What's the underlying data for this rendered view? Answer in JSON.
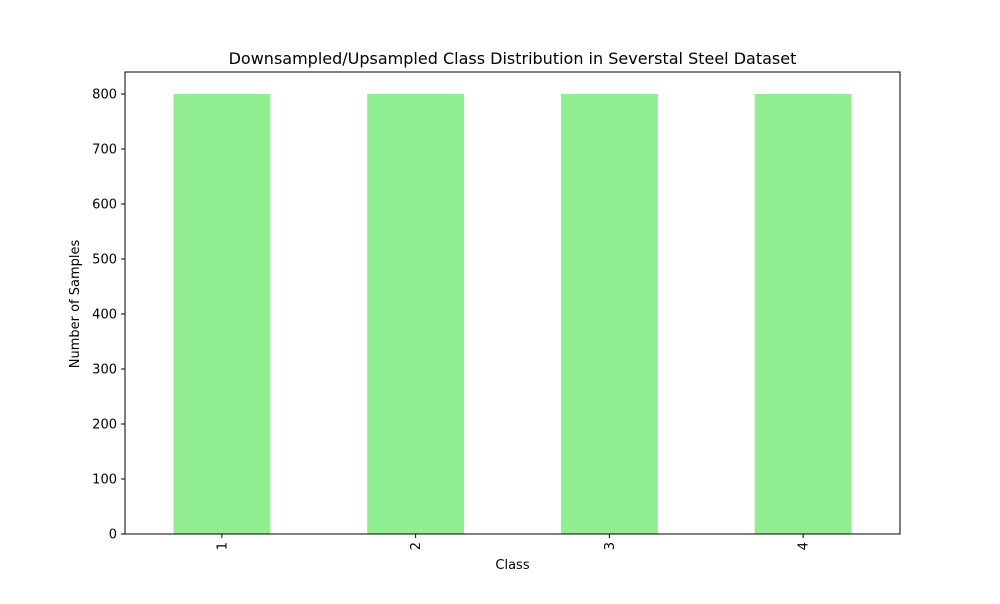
{
  "chart_data": {
    "type": "bar",
    "title": "Downsampled/Upsampled Class Distribution in Severstal Steel Dataset",
    "xlabel": "Class",
    "ylabel": "Number of Samples",
    "categories": [
      "1",
      "2",
      "3",
      "4"
    ],
    "values": [
      800,
      800,
      800,
      800
    ],
    "ylim": [
      0,
      840
    ],
    "yticks": [
      0,
      100,
      200,
      300,
      400,
      500,
      600,
      700,
      800
    ],
    "grid": false,
    "legend": "none",
    "bar_color": "#90ee90",
    "xtick_rotation": "vertical"
  }
}
